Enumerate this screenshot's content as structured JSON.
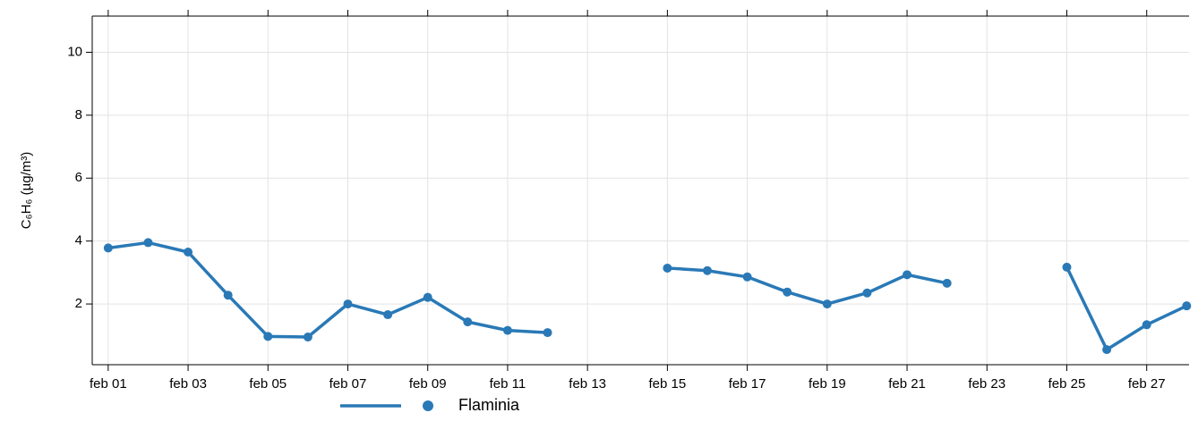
{
  "chart_data": {
    "type": "line",
    "ylabel": "C₆H₆ (µg/m³)",
    "x": [
      1,
      2,
      3,
      4,
      5,
      6,
      7,
      8,
      9,
      10,
      11,
      12,
      13,
      14,
      15,
      16,
      17,
      18,
      19,
      20,
      21,
      22,
      23,
      24,
      25,
      26,
      27,
      28
    ],
    "series": [
      {
        "name": "Flaminia",
        "color": "#2a79b6",
        "values": [
          3.78,
          3.95,
          3.65,
          2.28,
          0.97,
          0.95,
          2.0,
          1.66,
          2.21,
          1.43,
          1.16,
          1.09,
          null,
          null,
          3.14,
          3.06,
          2.86,
          2.38,
          2.0,
          2.35,
          2.93,
          2.66,
          null,
          null,
          3.17,
          0.55,
          1.34,
          1.94
        ]
      }
    ],
    "xlim": [
      0.6,
      28.06
    ],
    "xticks": [
      {
        "value": 1,
        "label": "feb 01"
      },
      {
        "value": 3,
        "label": "feb 03"
      },
      {
        "value": 5,
        "label": "feb 05"
      },
      {
        "value": 7,
        "label": "feb 07"
      },
      {
        "value": 9,
        "label": "feb 09"
      },
      {
        "value": 11,
        "label": "feb 11"
      },
      {
        "value": 13,
        "label": "feb 13"
      },
      {
        "value": 15,
        "label": "feb 15"
      },
      {
        "value": 17,
        "label": "feb 17"
      },
      {
        "value": 19,
        "label": "feb 19"
      },
      {
        "value": 21,
        "label": "feb 21"
      },
      {
        "value": 23,
        "label": "feb 23"
      },
      {
        "value": 25,
        "label": "feb 25"
      },
      {
        "value": 27,
        "label": "feb 27"
      }
    ],
    "ylim": [
      0.07,
      11.15
    ],
    "yticks": [
      2,
      4,
      6,
      8,
      10
    ],
    "grid": true
  }
}
